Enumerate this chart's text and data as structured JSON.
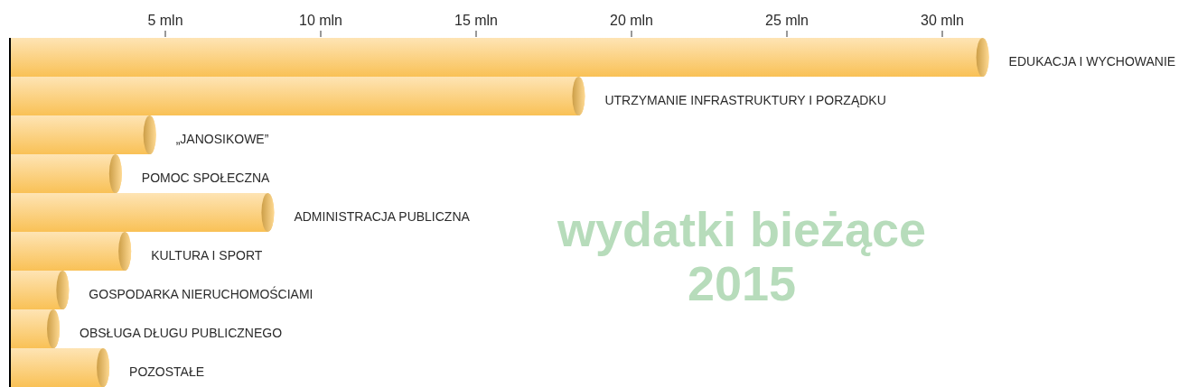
{
  "chart_data": {
    "type": "bar",
    "orientation": "horizontal",
    "title": "wydatki bieżące 2015",
    "categories": [
      "EDUKACJA I WYCHOWANIE",
      "UTRZYMANIE INFRASTRUKTURY I PORZĄDKU",
      "„JANOSIKOWE”",
      "POMOC SPOŁECZNA",
      "ADMINISTRACJA PUBLICZNA",
      "KULTURA I SPORT",
      "GOSPODARKA NIERUCHOMOŚCIAMI",
      "OBSŁUGA DŁUGU PUBLICZNEGO",
      "POZOSTAŁE"
    ],
    "values": [
      31.5,
      18.5,
      4.7,
      3.6,
      8.5,
      3.9,
      1.9,
      1.6,
      3.2
    ],
    "color": "#fdc458",
    "xlim": [
      0,
      37.5
    ],
    "xticks": [
      {
        "value": 5,
        "label": "5 mln"
      },
      {
        "value": 10,
        "label": "10 mln"
      },
      {
        "value": 15,
        "label": "15 mln"
      },
      {
        "value": 20,
        "label": "20 mln"
      },
      {
        "value": 25,
        "label": "25 mln"
      },
      {
        "value": 30,
        "label": "30 mln"
      }
    ]
  }
}
